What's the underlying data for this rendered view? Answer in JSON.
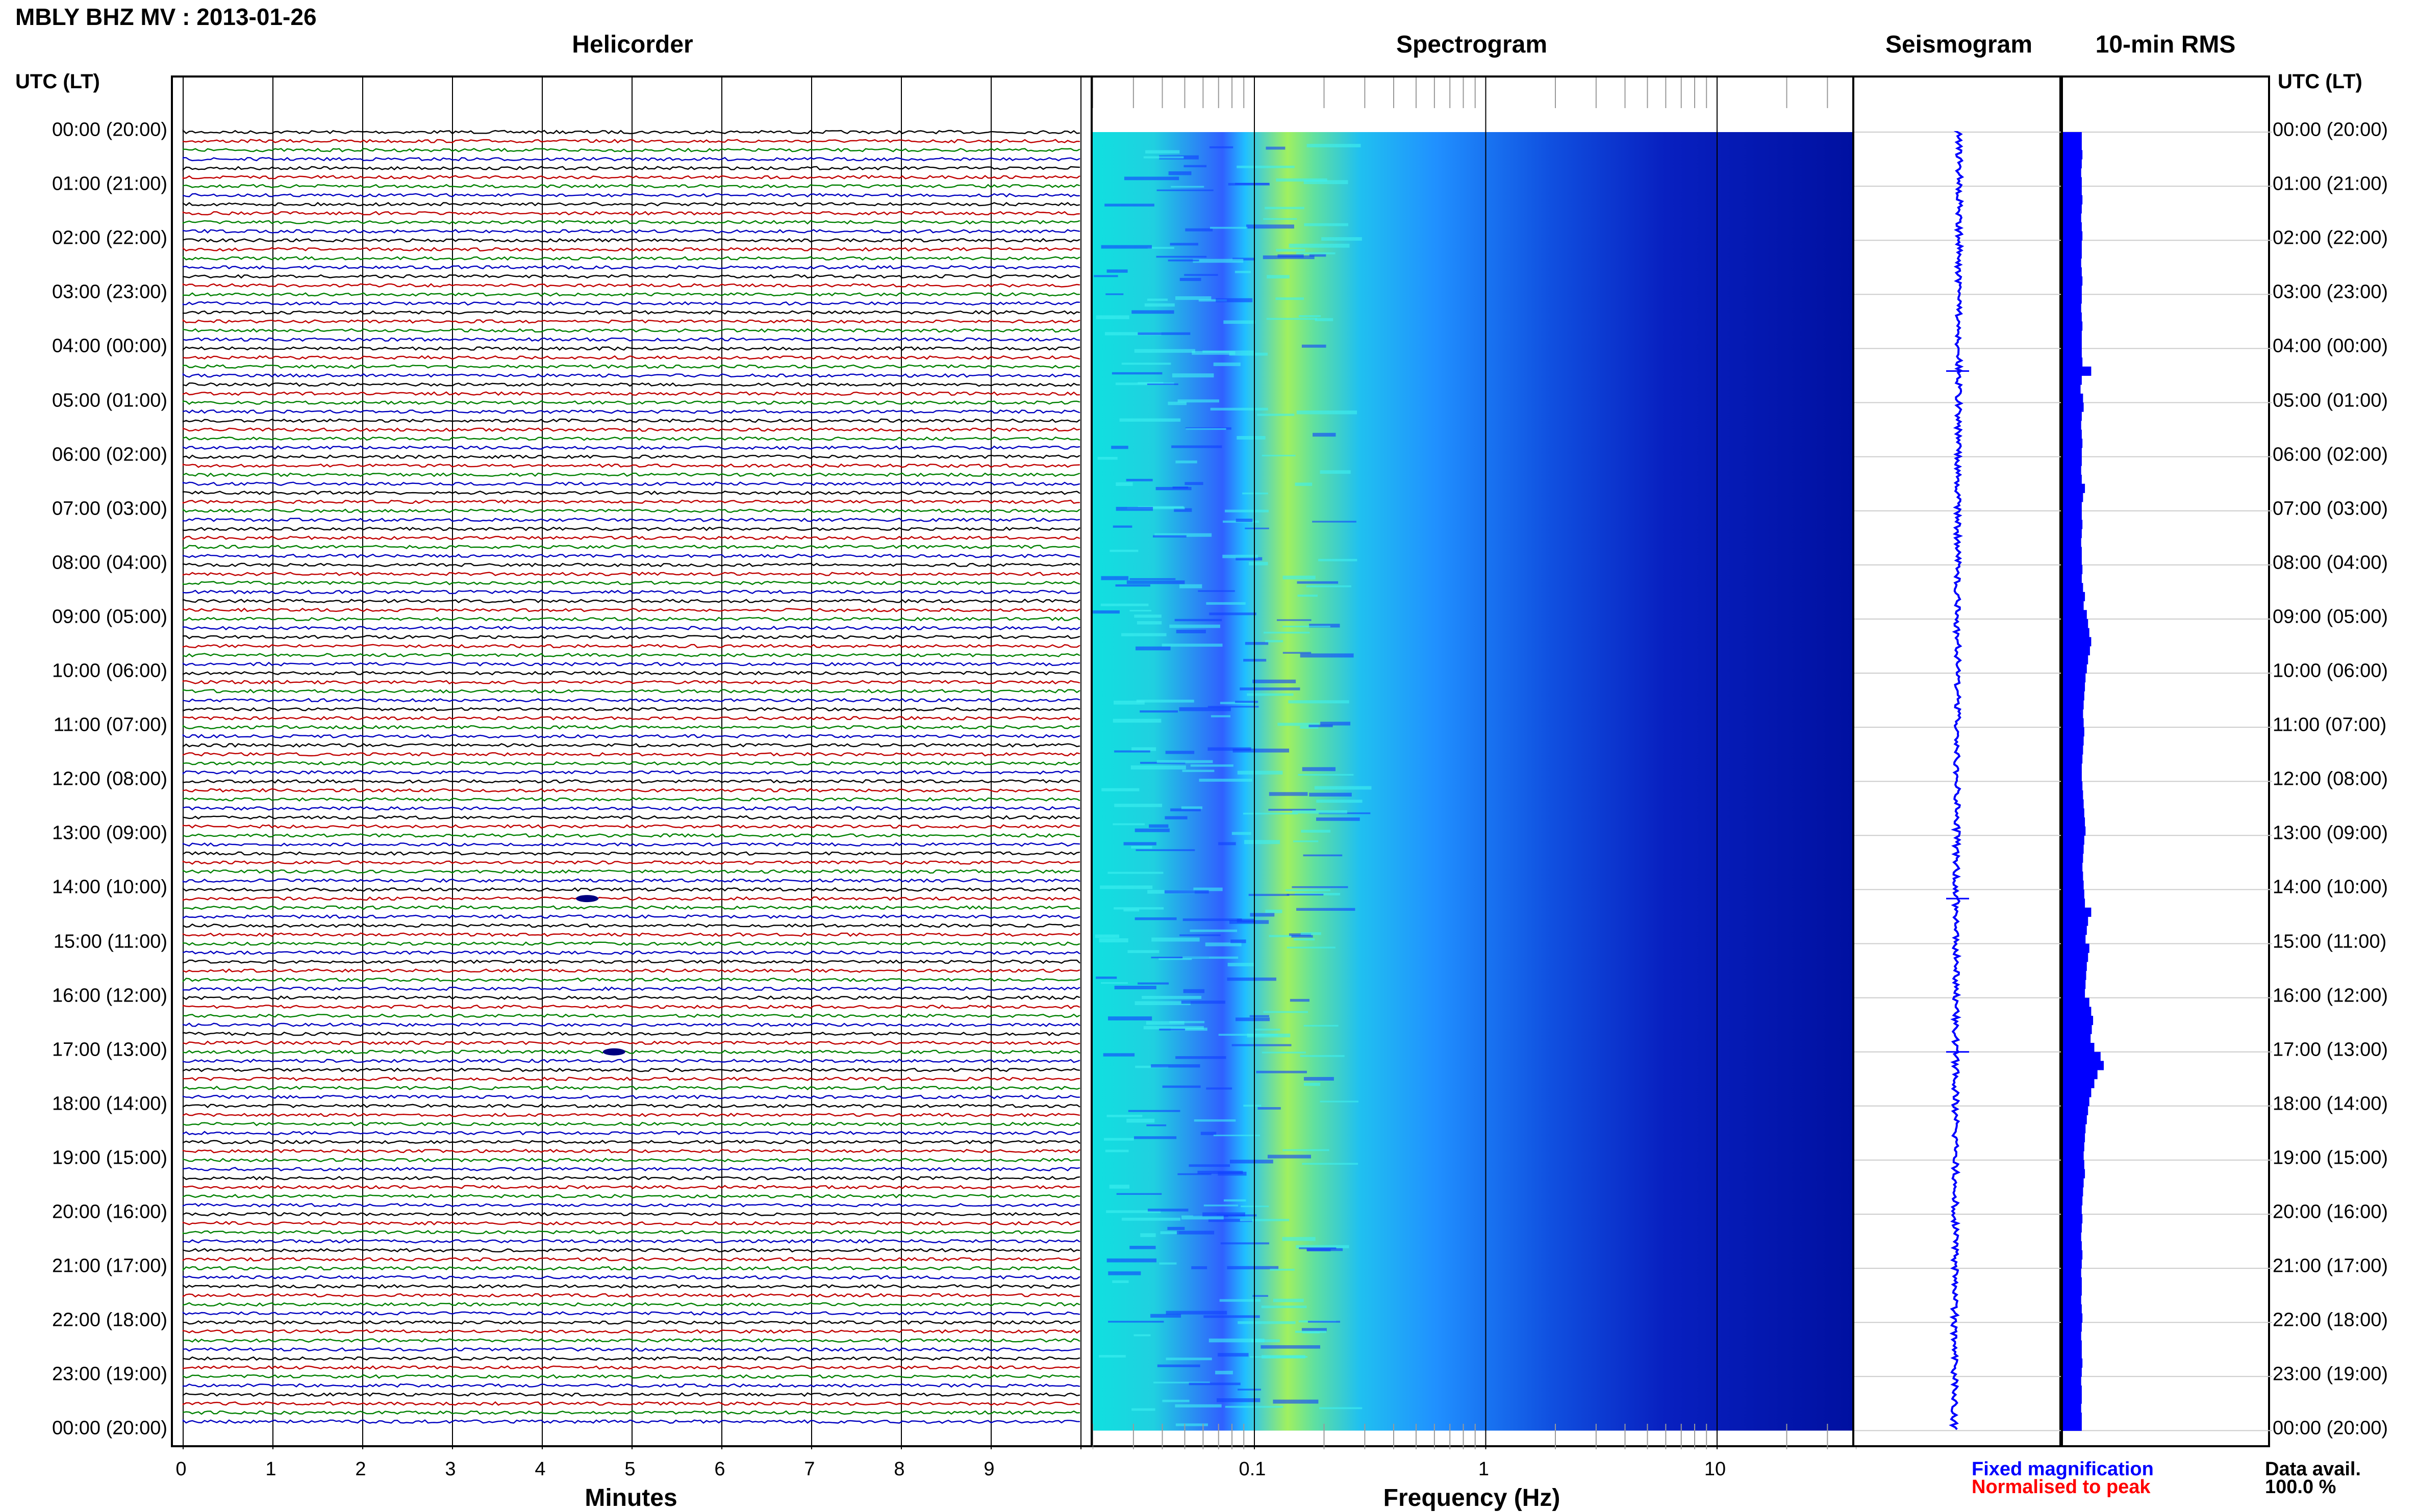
{
  "title": "MBLY BHZ MV : 2013-01-26",
  "panels": {
    "helicorder": "Helicorder",
    "spectrogram": "Spectrogram",
    "seismogram": "Seismogram",
    "rms": "10-min RMS"
  },
  "time_header_left": "UTC (LT)",
  "time_header_right": "UTC (LT)",
  "time_labels": [
    "00:00 (20:00)",
    "01:00 (21:00)",
    "02:00 (22:00)",
    "03:00 (23:00)",
    "04:00 (00:00)",
    "05:00 (01:00)",
    "06:00 (02:00)",
    "07:00 (03:00)",
    "08:00 (04:00)",
    "09:00 (05:00)",
    "10:00 (06:00)",
    "11:00 (07:00)",
    "12:00 (08:00)",
    "13:00 (09:00)",
    "14:00 (10:00)",
    "15:00 (11:00)",
    "16:00 (12:00)",
    "17:00 (13:00)",
    "18:00 (14:00)",
    "19:00 (15:00)",
    "20:00 (16:00)",
    "21:00 (17:00)",
    "22:00 (18:00)",
    "23:00 (19:00)",
    "00:00 (20:00)"
  ],
  "helicorder_xticks": [
    "0",
    "1",
    "2",
    "3",
    "4",
    "5",
    "6",
    "7",
    "8",
    "9"
  ],
  "helicorder_xlabel": "Minutes",
  "spectrogram_xticks": [
    "0.1",
    "1",
    "10"
  ],
  "spectrogram_xlabel": "Frequency (Hz)",
  "legend": {
    "fixed": "Fixed magnification",
    "normalised": "Normalised to peak",
    "fixed_color": "#0000ff",
    "normalised_color": "#ff0000"
  },
  "data_availability": {
    "label": "Data avail.",
    "value": "100.0 %"
  },
  "chart_data": [
    {
      "type": "line",
      "name": "helicorder",
      "title": "Helicorder",
      "xlabel": "Minutes",
      "xlim": [
        0,
        10
      ],
      "line_minutes": 10,
      "hours": 24,
      "trace_colors": [
        "#000000",
        "#c00000",
        "#008000",
        "#0000c0"
      ],
      "events": [
        {
          "line_start_utc": "14:10",
          "minute": 4.5
        },
        {
          "line_start_utc": "17:00",
          "minute": 4.8
        }
      ]
    },
    {
      "type": "heatmap",
      "name": "spectrogram",
      "title": "Spectrogram",
      "xlabel": "Frequency (Hz)",
      "xscale": "log",
      "xlim": [
        0.02,
        40
      ],
      "peak_frequency_hz": 0.2,
      "colormap": [
        "#00ffff",
        "#c0ff40",
        "#ffff00",
        "#2060ff",
        "#0000cc"
      ]
    },
    {
      "type": "line",
      "name": "seismogram",
      "title": "Seismogram",
      "events_utc": [
        "04:25",
        "14:10",
        "17:00"
      ]
    },
    {
      "type": "bar",
      "name": "10-min RMS",
      "title": "10-min RMS",
      "bin_minutes": 10,
      "bars": 144,
      "color": "#0000ff",
      "relative_values": [
        0.3,
        0.3,
        0.31,
        0.3,
        0.29,
        0.3,
        0.3,
        0.31,
        0.3,
        0.29,
        0.3,
        0.31,
        0.3,
        0.3,
        0.29,
        0.3,
        0.31,
        0.3,
        0.3,
        0.29,
        0.3,
        0.31,
        0.3,
        0.3,
        0.3,
        0.31,
        0.45,
        0.3,
        0.28,
        0.32,
        0.33,
        0.3,
        0.29,
        0.3,
        0.31,
        0.3,
        0.3,
        0.29,
        0.3,
        0.35,
        0.32,
        0.3,
        0.3,
        0.31,
        0.3,
        0.29,
        0.3,
        0.3,
        0.31,
        0.3,
        0.32,
        0.35,
        0.33,
        0.38,
        0.4,
        0.42,
        0.45,
        0.43,
        0.4,
        0.38,
        0.36,
        0.35,
        0.34,
        0.33,
        0.32,
        0.33,
        0.34,
        0.33,
        0.32,
        0.31,
        0.3,
        0.3,
        0.31,
        0.32,
        0.33,
        0.34,
        0.35,
        0.36,
        0.34,
        0.33,
        0.32,
        0.31,
        0.32,
        0.33,
        0.34,
        0.35,
        0.45,
        0.4,
        0.38,
        0.36,
        0.42,
        0.4,
        0.38,
        0.37,
        0.36,
        0.35,
        0.42,
        0.45,
        0.48,
        0.46,
        0.44,
        0.5,
        0.6,
        0.65,
        0.55,
        0.5,
        0.45,
        0.42,
        0.4,
        0.38,
        0.36,
        0.35,
        0.34,
        0.33,
        0.34,
        0.35,
        0.33,
        0.32,
        0.31,
        0.3,
        0.31,
        0.3,
        0.29,
        0.3,
        0.31,
        0.3,
        0.29,
        0.3,
        0.3,
        0.29,
        0.3,
        0.31,
        0.3,
        0.29,
        0.3,
        0.3,
        0.31,
        0.3,
        0.29,
        0.3,
        0.3,
        0.29,
        0.3,
        0.3
      ]
    }
  ]
}
